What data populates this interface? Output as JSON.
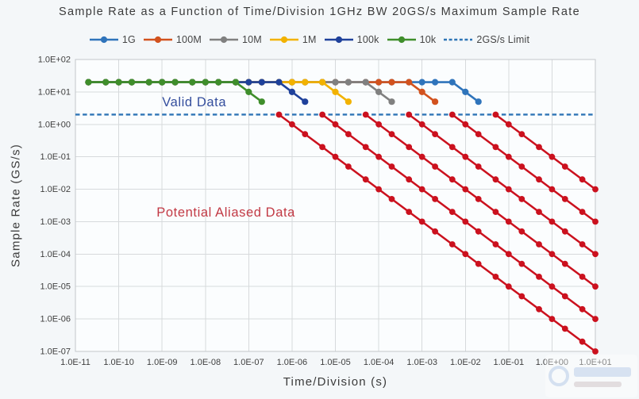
{
  "page": {
    "background": "#f4f7f9"
  },
  "chart_data": {
    "type": "line",
    "title": "Sample Rate as a Function of Time/Division 1GHz BW 20GS/s Maximum Sample Rate",
    "xlabel": "Time/Division (s)",
    "ylabel": "Sample Rate (GS/s)",
    "x_scale": "log",
    "y_scale": "log",
    "xlim": [
      1e-11,
      10
    ],
    "ylim": [
      1e-07,
      100
    ],
    "grid": true,
    "legend_position": "top",
    "unit": "GS/s",
    "flat_max_rate_GSps": 20,
    "x_tick_labels": [
      "1.0E-11",
      "1.0E-10",
      "1.0E-09",
      "1.0E-08",
      "1.0E-07",
      "1.0E-06",
      "1.0E-05",
      "1.0E-04",
      "1.0E-03",
      "1.0E-02",
      "1.0E-01",
      "1.0E+00",
      "1.0E+01"
    ],
    "y_tick_labels": [
      "1.0E+02",
      "1.0E+01",
      "1.0E+00",
      "1.0E-01",
      "1.0E-02",
      "1.0E-03",
      "1.0E-04",
      "1.0E-05",
      "1.0E-06",
      "1.0E-07"
    ],
    "t_mantissas": [
      1,
      2,
      5
    ],
    "limit": {
      "label": "2GS/s Limit",
      "value": 2,
      "color": "#2E75B6",
      "style": "dashed"
    },
    "aliased_color": "#CB111E",
    "annotations": [
      {
        "text": "Valid Data",
        "t": 1e-09,
        "rate": 3.6,
        "color": "#344E9D",
        "size": 16.5
      },
      {
        "text": "Potential Aliased Data",
        "t": 7.5e-10,
        "rate": 0.00145,
        "color": "#C23944",
        "size": 16.5
      }
    ],
    "series": [
      {
        "name": "1G",
        "memory_points": 1000000000.0,
        "color": "#2F74BB",
        "valid": {
          "flat_rate": 20,
          "flat_from": 2e-11,
          "flat_to": 0.005,
          "descent": [
            [
              0.01,
              10
            ],
            [
              0.02,
              5
            ]
          ]
        },
        "aliased": [
          [
            0.05,
            2
          ],
          [
            0.1,
            1
          ],
          [
            0.2,
            0.5
          ],
          [
            0.5,
            0.2
          ],
          [
            1,
            0.1
          ],
          [
            2,
            0.05
          ],
          [
            5,
            0.02
          ],
          [
            10,
            0.01
          ]
        ]
      },
      {
        "name": "100M",
        "memory_points": 100000000.0,
        "color": "#D2521E",
        "valid": {
          "flat_rate": 20,
          "flat_from": 2e-11,
          "flat_to": 0.0005,
          "descent": [
            [
              0.001,
              10
            ],
            [
              0.002,
              5
            ]
          ]
        },
        "aliased": [
          [
            0.005,
            2
          ],
          [
            0.01,
            1
          ],
          [
            0.02,
            0.5
          ],
          [
            0.05,
            0.2
          ],
          [
            0.1,
            0.1
          ],
          [
            0.2,
            0.05
          ],
          [
            0.5,
            0.02
          ],
          [
            1,
            0.01
          ],
          [
            2,
            0.005
          ],
          [
            5,
            0.002
          ],
          [
            10,
            0.001
          ]
        ]
      },
      {
        "name": "10M",
        "memory_points": 10000000.0,
        "color": "#808080",
        "valid": {
          "flat_rate": 20,
          "flat_from": 2e-11,
          "flat_to": 5e-05,
          "descent": [
            [
              0.0001,
              10
            ],
            [
              0.0002,
              5
            ]
          ]
        },
        "aliased": [
          [
            0.0005,
            2
          ],
          [
            0.001,
            1
          ],
          [
            0.002,
            0.5
          ],
          [
            0.005,
            0.2
          ],
          [
            0.01,
            0.1
          ],
          [
            0.02,
            0.05
          ],
          [
            0.05,
            0.02
          ],
          [
            0.1,
            0.01
          ],
          [
            0.2,
            0.005
          ],
          [
            0.5,
            0.002
          ],
          [
            1,
            0.001
          ],
          [
            2,
            0.0005
          ],
          [
            5,
            0.0002
          ],
          [
            10,
            0.0001
          ]
        ]
      },
      {
        "name": "1M",
        "memory_points": 1000000.0,
        "color": "#F2B200",
        "valid": {
          "flat_rate": 20,
          "flat_from": 2e-11,
          "flat_to": 5e-06,
          "descent": [
            [
              1e-05,
              10
            ],
            [
              2e-05,
              5
            ]
          ]
        },
        "aliased": [
          [
            5e-05,
            2
          ],
          [
            0.0001,
            1
          ],
          [
            0.0002,
            0.5
          ],
          [
            0.0005,
            0.2
          ],
          [
            0.001,
            0.1
          ],
          [
            0.002,
            0.05
          ],
          [
            0.005,
            0.02
          ],
          [
            0.01,
            0.01
          ],
          [
            0.02,
            0.005
          ],
          [
            0.05,
            0.002
          ],
          [
            0.1,
            0.001
          ],
          [
            0.2,
            0.0005
          ],
          [
            0.5,
            0.0002
          ],
          [
            1,
            0.0001
          ],
          [
            2,
            5e-05
          ],
          [
            5,
            2e-05
          ],
          [
            10,
            1e-05
          ]
        ]
      },
      {
        "name": "100k",
        "memory_points": 100000.0,
        "color": "#1F419B",
        "valid": {
          "flat_rate": 20,
          "flat_from": 2e-11,
          "flat_to": 5e-07,
          "descent": [
            [
              1e-06,
              10
            ],
            [
              2e-06,
              5
            ]
          ]
        },
        "aliased": [
          [
            5e-06,
            2
          ],
          [
            1e-05,
            1
          ],
          [
            2e-05,
            0.5
          ],
          [
            5e-05,
            0.2
          ],
          [
            0.0001,
            0.1
          ],
          [
            0.0002,
            0.05
          ],
          [
            0.0005,
            0.02
          ],
          [
            0.001,
            0.01
          ],
          [
            0.002,
            0.005
          ],
          [
            0.005,
            0.002
          ],
          [
            0.01,
            0.001
          ],
          [
            0.02,
            0.0005
          ],
          [
            0.05,
            0.0002
          ],
          [
            0.1,
            0.0001
          ],
          [
            0.2,
            5e-05
          ],
          [
            0.5,
            2e-05
          ],
          [
            1,
            1e-05
          ],
          [
            2,
            5e-06
          ],
          [
            5,
            2e-06
          ],
          [
            10,
            1e-06
          ]
        ]
      },
      {
        "name": "10k",
        "memory_points": 10000.0,
        "color": "#3F8E2B",
        "valid": {
          "flat_rate": 20,
          "flat_from": 2e-11,
          "flat_to": 5e-08,
          "descent": [
            [
              1e-07,
              10
            ],
            [
              2e-07,
              5
            ]
          ]
        },
        "aliased": [
          [
            5e-07,
            2
          ],
          [
            1e-06,
            1
          ],
          [
            2e-06,
            0.5
          ],
          [
            5e-06,
            0.2
          ],
          [
            1e-05,
            0.1
          ],
          [
            2e-05,
            0.05
          ],
          [
            5e-05,
            0.02
          ],
          [
            0.0001,
            0.01
          ],
          [
            0.0002,
            0.005
          ],
          [
            0.0005,
            0.002
          ],
          [
            0.001,
            0.001
          ],
          [
            0.002,
            0.0005
          ],
          [
            0.005,
            0.0002
          ],
          [
            0.01,
            0.0001
          ],
          [
            0.02,
            5e-05
          ],
          [
            0.05,
            2e-05
          ],
          [
            0.1,
            1e-05
          ],
          [
            0.2,
            5e-06
          ],
          [
            0.5,
            2e-06
          ],
          [
            1,
            1e-06
          ],
          [
            2,
            5e-07
          ],
          [
            5,
            2e-07
          ],
          [
            10,
            1e-07
          ]
        ]
      }
    ]
  }
}
